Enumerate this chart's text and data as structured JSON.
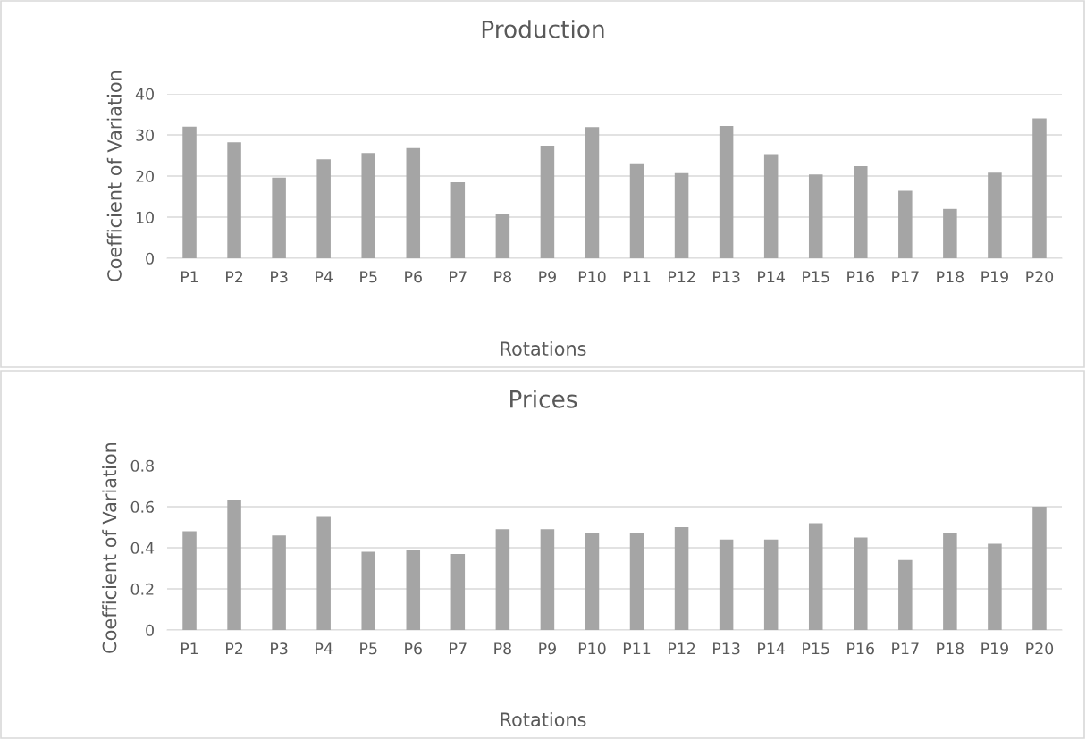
{
  "chart_data": [
    {
      "type": "bar",
      "title": "Production",
      "xlabel": "Rotations",
      "ylabel": "Coefficient of Variation",
      "categories": [
        "P1",
        "P2",
        "P3",
        "P4",
        "P5",
        "P6",
        "P7",
        "P8",
        "P9",
        "P10",
        "P11",
        "P12",
        "P13",
        "P14",
        "P15",
        "P16",
        "P17",
        "P18",
        "P19",
        "P20"
      ],
      "values": [
        32.0,
        28.2,
        19.6,
        24.1,
        25.6,
        26.8,
        18.5,
        10.8,
        27.4,
        31.9,
        23.1,
        20.7,
        32.2,
        25.3,
        20.4,
        22.4,
        16.4,
        12.0,
        20.8,
        34.0
      ],
      "color": "#a5a5a5",
      "ylim": [
        0,
        40
      ],
      "yticks": [
        0,
        10,
        20,
        30,
        40
      ],
      "grid": "y"
    },
    {
      "type": "bar",
      "title": "Prices",
      "xlabel": "Rotations",
      "ylabel": "Coefficient of Variation",
      "categories": [
        "P1",
        "P2",
        "P3",
        "P4",
        "P5",
        "P6",
        "P7",
        "P8",
        "P9",
        "P10",
        "P11",
        "P12",
        "P13",
        "P14",
        "P15",
        "P16",
        "P17",
        "P18",
        "P19",
        "P20"
      ],
      "values": [
        0.48,
        0.63,
        0.46,
        0.55,
        0.38,
        0.39,
        0.37,
        0.49,
        0.49,
        0.47,
        0.47,
        0.5,
        0.44,
        0.44,
        0.52,
        0.45,
        0.34,
        0.47,
        0.42,
        0.6
      ],
      "color": "#a5a5a5",
      "ylim": [
        0,
        0.8
      ],
      "yticks": [
        0,
        {
          "value": 0.2,
          "label": "0.2"
        },
        {
          "value": 0.4,
          "label": "0.4"
        },
        {
          "value": 0.6,
          "label": "0.6"
        },
        {
          "value": 0.8,
          "label": "0.8"
        }
      ],
      "grid": "y"
    }
  ]
}
